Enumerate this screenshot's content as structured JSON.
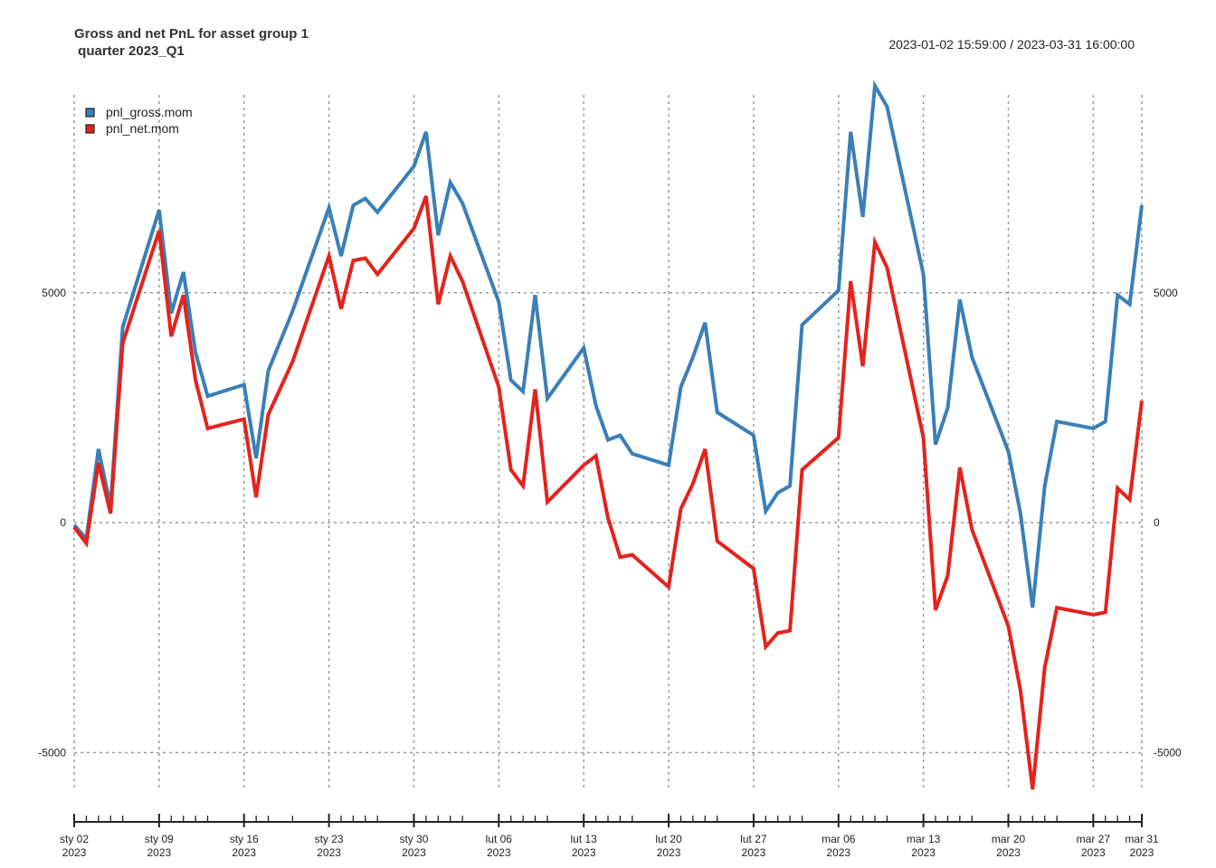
{
  "title_line1": "Gross and net PnL for asset group 1",
  "title_line2": " quarter 2023_Q1",
  "date_range": "2023-01-02 15:59:00 / 2023-03-31 16:00:00",
  "colors": {
    "gross": "#3a7fb7",
    "net": "#e3231d",
    "grid": "#9a9a9a",
    "axis": "#222222"
  },
  "chart_data": {
    "type": "line",
    "title": "Gross and net PnL for asset group 1\n quarter 2023_Q1",
    "xlabel": "",
    "ylabel": "",
    "ylim": [
      -5800,
      9400
    ],
    "xlim": [
      "2023-01-02",
      "2023-03-31"
    ],
    "y_ticks": [
      -5000,
      0,
      5000
    ],
    "y_tick_labels": [
      "-5000",
      "0",
      "5000"
    ],
    "x_tick_labels": [
      {
        "date": "2023-01-02",
        "line1": "sty 02",
        "line2": "2023"
      },
      {
        "date": "2023-01-09",
        "line1": "sty 09",
        "line2": "2023"
      },
      {
        "date": "2023-01-16",
        "line1": "sty 16",
        "line2": "2023"
      },
      {
        "date": "2023-01-23",
        "line1": "sty 23",
        "line2": "2023"
      },
      {
        "date": "2023-01-30",
        "line1": "sty 30",
        "line2": "2023"
      },
      {
        "date": "2023-02-06",
        "line1": "lut 06",
        "line2": "2023"
      },
      {
        "date": "2023-02-13",
        "line1": "lut 13",
        "line2": "2023"
      },
      {
        "date": "2023-02-20",
        "line1": "lut 20",
        "line2": "2023"
      },
      {
        "date": "2023-02-27",
        "line1": "lut 27",
        "line2": "2023"
      },
      {
        "date": "2023-03-06",
        "line1": "mar 06",
        "line2": "2023"
      },
      {
        "date": "2023-03-13",
        "line1": "mar 13",
        "line2": "2023"
      },
      {
        "date": "2023-03-20",
        "line1": "mar 20",
        "line2": "2023"
      },
      {
        "date": "2023-03-27",
        "line1": "mar 27",
        "line2": "2023"
      },
      {
        "date": "2023-03-31",
        "line1": "mar 31",
        "line2": "2023"
      }
    ],
    "grid": true,
    "legend_position": "top-left",
    "x": [
      "2023-01-02",
      "2023-01-03",
      "2023-01-04",
      "2023-01-05",
      "2023-01-06",
      "2023-01-09",
      "2023-01-10",
      "2023-01-11",
      "2023-01-12",
      "2023-01-13",
      "2023-01-16",
      "2023-01-17",
      "2023-01-18",
      "2023-01-20",
      "2023-01-23",
      "2023-01-24",
      "2023-01-25",
      "2023-01-26",
      "2023-01-27",
      "2023-01-30",
      "2023-01-31",
      "2023-02-01",
      "2023-02-02",
      "2023-02-03",
      "2023-02-06",
      "2023-02-07",
      "2023-02-08",
      "2023-02-09",
      "2023-02-10",
      "2023-02-13",
      "2023-02-14",
      "2023-02-15",
      "2023-02-16",
      "2023-02-17",
      "2023-02-20",
      "2023-02-21",
      "2023-02-22",
      "2023-02-23",
      "2023-02-24",
      "2023-02-27",
      "2023-02-28",
      "2023-03-01",
      "2023-03-02",
      "2023-03-03",
      "2023-03-06",
      "2023-03-07",
      "2023-03-08",
      "2023-03-09",
      "2023-03-10",
      "2023-03-13",
      "2023-03-14",
      "2023-03-15",
      "2023-03-16",
      "2023-03-17",
      "2023-03-20",
      "2023-03-21",
      "2023-03-22",
      "2023-03-23",
      "2023-03-24",
      "2023-03-27",
      "2023-03-28",
      "2023-03-29",
      "2023-03-30",
      "2023-03-31"
    ],
    "series": [
      {
        "name": "pnl_gross.mom",
        "values": [
          -50,
          -350,
          1600,
          350,
          4250,
          6800,
          4550,
          5450,
          3700,
          2750,
          3000,
          1400,
          3300,
          4600,
          6850,
          5800,
          6900,
          7050,
          6750,
          7750,
          8500,
          6250,
          7400,
          6950,
          4800,
          3100,
          2850,
          4950,
          2700,
          3800,
          2550,
          1800,
          1900,
          1500,
          1250,
          2950,
          3600,
          4350,
          2400,
          1900,
          250,
          650,
          800,
          4300,
          5050,
          8500,
          6650,
          9500,
          9050,
          5400,
          1700,
          2500,
          4850,
          3600,
          1550,
          200,
          -1850,
          800,
          2200,
          2050,
          2200,
          4950,
          4750,
          6900
        ]
      },
      {
        "name": "pnl_net.mom",
        "values": [
          -100,
          -450,
          1300,
          200,
          3900,
          6350,
          4050,
          4950,
          3100,
          2050,
          2250,
          550,
          2350,
          3500,
          5800,
          4650,
          5700,
          5750,
          5400,
          6400,
          7100,
          4750,
          5800,
          5250,
          2950,
          1150,
          800,
          2900,
          450,
          1250,
          1450,
          100,
          -750,
          -700,
          -1400,
          300,
          850,
          1600,
          -400,
          -1000,
          -2700,
          -2400,
          -2350,
          1150,
          1850,
          5250,
          3400,
          6100,
          5550,
          1850,
          -1900,
          -1150,
          1200,
          -150,
          -2250,
          -3650,
          -5800,
          -3150,
          -1850,
          -2000,
          -1950,
          750,
          500,
          2650
        ]
      }
    ]
  }
}
